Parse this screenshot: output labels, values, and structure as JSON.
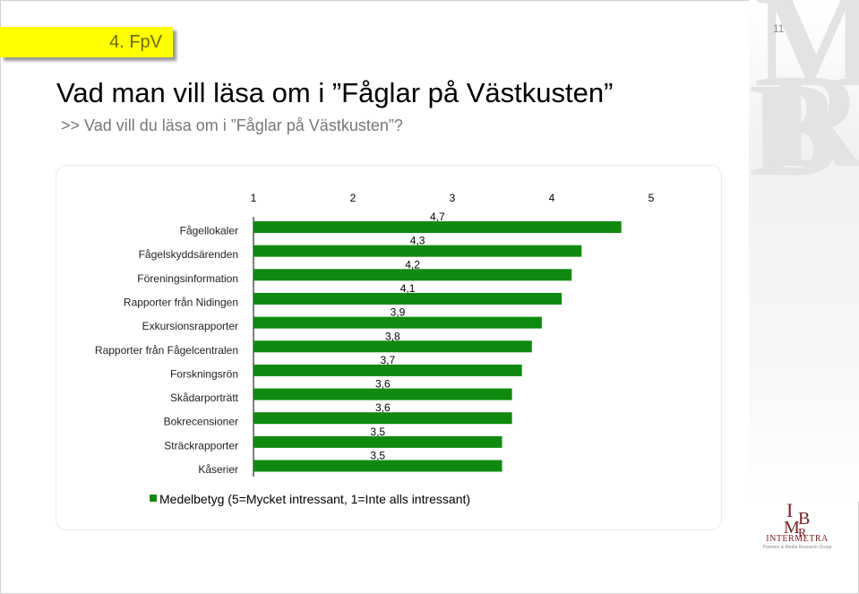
{
  "slide": {
    "tag": "4. FpV",
    "page_number": "11",
    "title": "Vad man vill läsa om i ”Fåglar på Västkusten”",
    "subtitle": ">> Vad vill du läsa om i ”Fåglar på Västkusten”?"
  },
  "logo": {
    "text": "INTERMETRA",
    "subtext": "Partners & Media Research Group"
  },
  "colors": {
    "bar": "#0f8a0f",
    "tag_bg": "#ffff00",
    "tag_text": "#6b6b00"
  },
  "chart_data": {
    "type": "bar",
    "orientation": "horizontal",
    "categories": [
      "Fågellokaler",
      "Fågelskyddsärenden",
      "Föreningsinformation",
      "Rapporter från Nidingen",
      "Exkursionsrapporter",
      "Rapporter från Fågelcentralen",
      "Forskningsrön",
      "Skådarporträtt",
      "Bokrecensioner",
      "Sträckrapporter",
      "Kåserier"
    ],
    "series": [
      {
        "name": "Medelbetyg (5=Mycket intressant, 1=Inte alls intressant)",
        "values": [
          4.7,
          4.3,
          4.2,
          4.1,
          3.9,
          3.8,
          3.7,
          3.6,
          3.6,
          3.5,
          3.5
        ],
        "labels": [
          "4,7",
          "4,3",
          "4,2",
          "4,1",
          "3,9",
          "3,8",
          "3,7",
          "3,6",
          "3,6",
          "3,5",
          "3,5"
        ]
      }
    ],
    "xlim": [
      1,
      5
    ],
    "xticks": [
      "1",
      "2",
      "3",
      "4",
      "5"
    ],
    "legend_position": "bottom-left",
    "grid": false
  }
}
